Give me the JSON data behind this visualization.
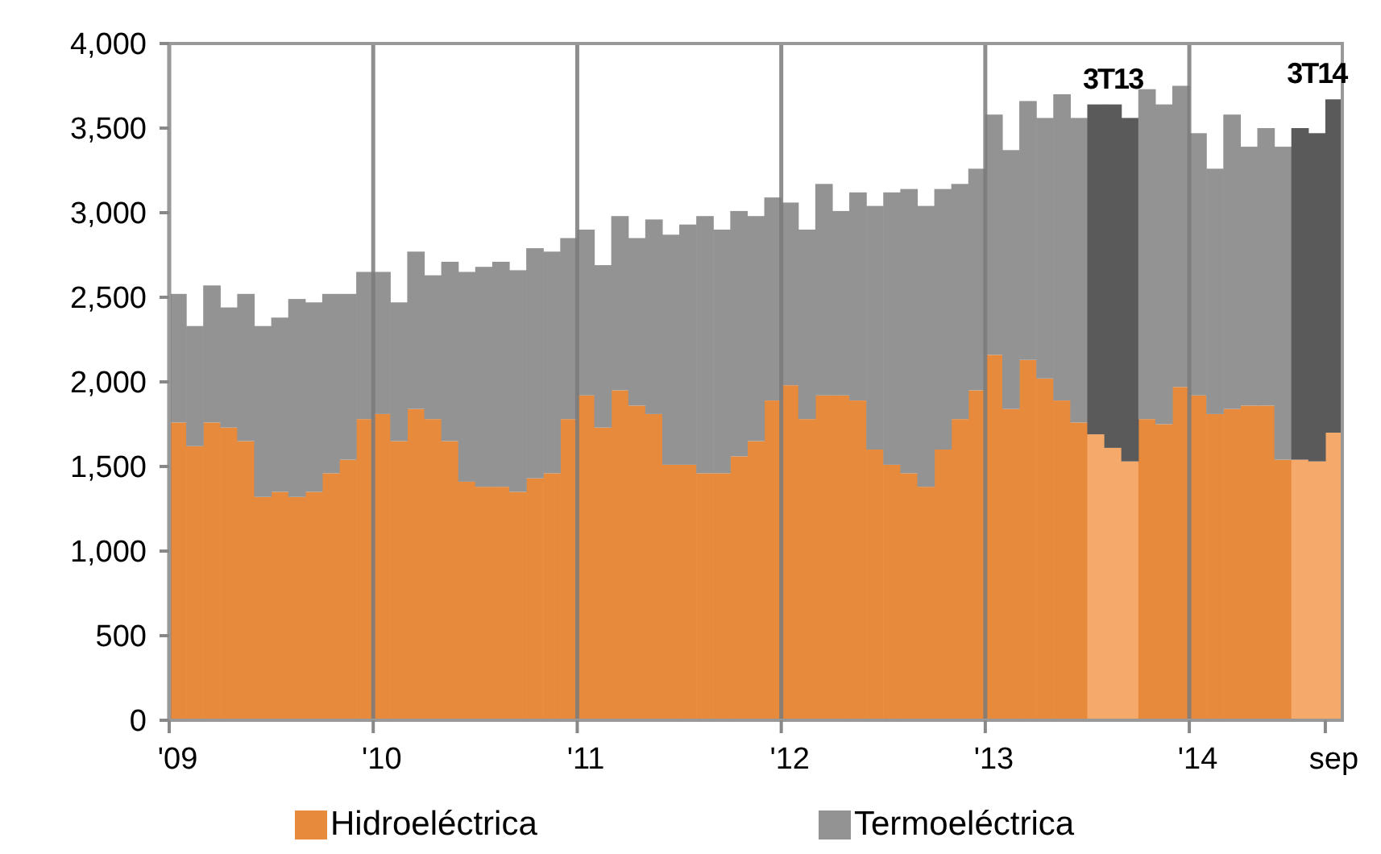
{
  "chart_data": {
    "type": "bar",
    "stacked": true,
    "categories": [
      "'09",
      null,
      null,
      null,
      null,
      null,
      null,
      null,
      null,
      null,
      null,
      null,
      "'10",
      null,
      null,
      null,
      null,
      null,
      null,
      null,
      null,
      null,
      null,
      null,
      "'11",
      null,
      null,
      null,
      null,
      null,
      null,
      null,
      null,
      null,
      null,
      null,
      "'12",
      null,
      null,
      null,
      null,
      null,
      null,
      null,
      null,
      null,
      null,
      null,
      "'13",
      null,
      null,
      null,
      null,
      null,
      null,
      null,
      null,
      null,
      null,
      null,
      "'14",
      null,
      null,
      null,
      null,
      null,
      null,
      null,
      "sep"
    ],
    "series": [
      {
        "name": "Hidroeléctrica",
        "color": "#e88a3c",
        "colors": [
          "#e88a3c",
          "#e88a3c",
          "#e88a3c",
          "#e88a3c",
          "#e88a3c",
          "#e88a3c",
          "#e88a3c",
          "#e88a3c",
          "#e88a3c",
          "#e88a3c",
          "#e88a3c",
          "#e88a3c",
          "#e88a3c",
          "#e88a3c",
          "#e88a3c",
          "#e88a3c",
          "#e88a3c",
          "#e88a3c",
          "#e88a3c",
          "#e88a3c",
          "#e88a3c",
          "#e88a3c",
          "#e88a3c",
          "#e88a3c",
          "#e88a3c",
          "#e88a3c",
          "#e88a3c",
          "#e88a3c",
          "#e88a3c",
          "#e88a3c",
          "#e88a3c",
          "#e88a3c",
          "#e88a3c",
          "#e88a3c",
          "#e88a3c",
          "#e88a3c",
          "#e88a3c",
          "#e88a3c",
          "#e88a3c",
          "#e88a3c",
          "#e88a3c",
          "#e88a3c",
          "#e88a3c",
          "#e88a3c",
          "#e88a3c",
          "#e88a3c",
          "#e88a3c",
          "#e88a3c",
          "#e88a3c",
          "#e88a3c",
          "#e88a3c",
          "#e88a3c",
          "#e88a3c",
          "#e88a3c",
          "#f5a96a",
          "#f5a96a",
          "#f5a96a",
          "#e88a3c",
          "#e88a3c",
          "#e88a3c",
          "#e88a3c",
          "#e88a3c",
          "#e88a3c",
          "#e88a3c",
          "#e88a3c",
          "#e88a3c",
          "#f5a96a",
          "#f5a96a",
          "#f5a96a"
        ],
        "values": [
          1760,
          1620,
          1760,
          1730,
          1650,
          1320,
          1350,
          1320,
          1350,
          1460,
          1540,
          1780,
          1810,
          1650,
          1840,
          1780,
          1650,
          1410,
          1380,
          1380,
          1350,
          1430,
          1460,
          1780,
          1920,
          1730,
          1950,
          1860,
          1810,
          1510,
          1510,
          1460,
          1460,
          1560,
          1650,
          1890,
          1980,
          1780,
          1920,
          1920,
          1890,
          1600,
          1510,
          1460,
          1380,
          1600,
          1780,
          1950,
          2160,
          1840,
          2130,
          2020,
          1890,
          1760,
          1690,
          1610,
          1530,
          1780,
          1750,
          1970,
          1920,
          1810,
          1840,
          1860,
          1860,
          1540,
          1540,
          1530,
          1700
        ]
      },
      {
        "name": "Termoeléctrica",
        "color": "#939393",
        "colors": [
          "#939393",
          "#939393",
          "#939393",
          "#939393",
          "#939393",
          "#939393",
          "#939393",
          "#939393",
          "#939393",
          "#939393",
          "#939393",
          "#939393",
          "#939393",
          "#939393",
          "#939393",
          "#939393",
          "#939393",
          "#939393",
          "#939393",
          "#939393",
          "#939393",
          "#939393",
          "#939393",
          "#939393",
          "#939393",
          "#939393",
          "#939393",
          "#939393",
          "#939393",
          "#939393",
          "#939393",
          "#939393",
          "#939393",
          "#939393",
          "#939393",
          "#939393",
          "#939393",
          "#939393",
          "#939393",
          "#939393",
          "#939393",
          "#939393",
          "#939393",
          "#939393",
          "#939393",
          "#939393",
          "#939393",
          "#939393",
          "#939393",
          "#939393",
          "#939393",
          "#939393",
          "#939393",
          "#939393",
          "#5a5a5a",
          "#5a5a5a",
          "#5a5a5a",
          "#939393",
          "#939393",
          "#939393",
          "#939393",
          "#939393",
          "#939393",
          "#939393",
          "#939393",
          "#939393",
          "#5a5a5a",
          "#5a5a5a",
          "#5a5a5a"
        ],
        "values": [
          760,
          710,
          810,
          710,
          870,
          1010,
          1030,
          1170,
          1120,
          1060,
          980,
          870,
          840,
          820,
          930,
          850,
          1060,
          1240,
          1300,
          1330,
          1310,
          1360,
          1310,
          1070,
          980,
          960,
          1030,
          990,
          1150,
          1360,
          1420,
          1520,
          1440,
          1450,
          1330,
          1200,
          1080,
          1120,
          1250,
          1090,
          1230,
          1440,
          1610,
          1680,
          1660,
          1540,
          1390,
          1310,
          1420,
          1530,
          1530,
          1540,
          1810,
          1800,
          1950,
          2030,
          2030,
          1950,
          1890,
          1780,
          1550,
          1450,
          1740,
          1530,
          1640,
          1850,
          1960,
          1940,
          1970
        ]
      }
    ],
    "ylim": [
      0,
      4000
    ],
    "yticks": [
      0,
      500,
      {
        "value": 1000,
        "label": "1,000"
      },
      {
        "value": 1500,
        "label": "1,500"
      },
      {
        "value": 2000,
        "label": "2,000"
      },
      {
        "value": 2500,
        "label": "2,500"
      },
      {
        "value": 3000,
        "label": "3,000"
      },
      {
        "value": 3500,
        "label": "3,500"
      },
      {
        "value": 4000,
        "label": "4,000"
      }
    ],
    "grid": "x",
    "legend": "bottom",
    "annotations": [
      "3T13",
      "3T14"
    ]
  }
}
